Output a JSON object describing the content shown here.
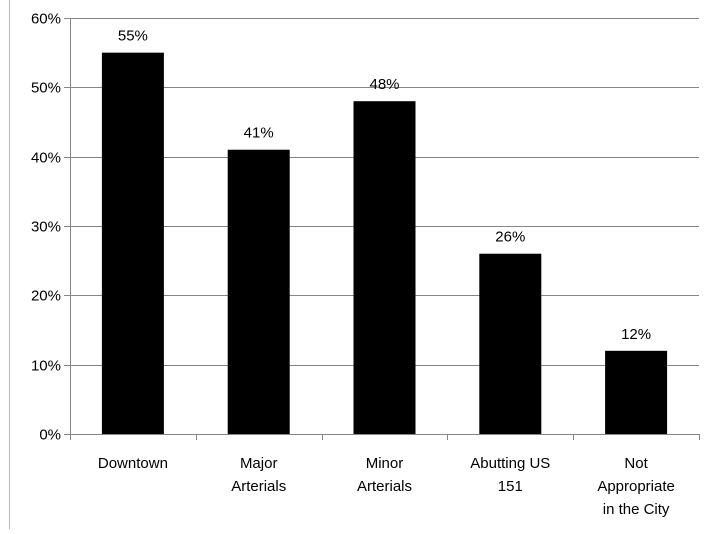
{
  "chart_data": {
    "type": "bar",
    "categories": [
      [
        "Downtown"
      ],
      [
        "Major",
        "Arterials"
      ],
      [
        "Minor",
        "Arterials"
      ],
      [
        "Abutting US",
        "151"
      ],
      [
        "Not",
        "Appropriate",
        "in the City"
      ]
    ],
    "values": [
      55,
      41,
      48,
      26,
      12
    ],
    "data_labels": [
      "55%",
      "41%",
      "48%",
      "26%",
      "12%"
    ],
    "y_ticks": [
      "0%",
      "10%",
      "20%",
      "30%",
      "40%",
      "50%",
      "60%"
    ],
    "ylim": [
      0,
      60
    ],
    "grid": true,
    "legend": "none",
    "bar_color": "#000000",
    "grid_color": "#868686",
    "axis_color": "#868686"
  }
}
